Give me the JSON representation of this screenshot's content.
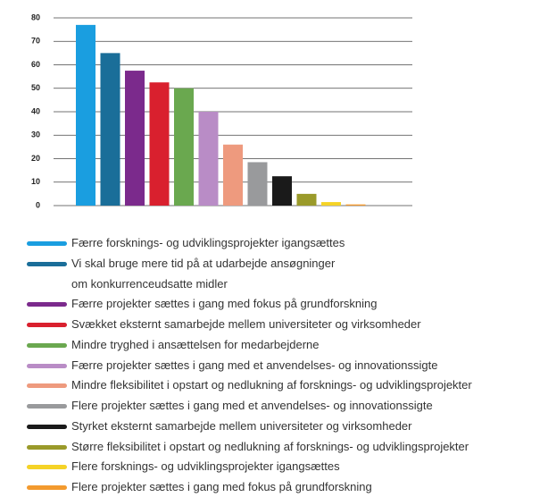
{
  "chart_data": {
    "type": "bar",
    "categories": [
      "Færre forsknings- og udviklingsprojekter igangsættes",
      "Vi skal bruge mere tid på at udarbejde ansøgninger\nom konkurrenceudsatte midler",
      "Færre projekter sættes i gang med fokus på grundforskning",
      "Svækket eksternt samarbejde mellem universiteter og virksomheder",
      "Mindre tryghed i ansættelsen for medarbejderne",
      "Færre projekter sættes i gang med et anvendelses- og innovationssigte",
      "Mindre fleksibilitet i opstart og nedlukning af forsknings- og udviklingsprojekter",
      "Flere projekter sættes i gang med et anvendelses- og innovationssigte",
      "Styrket eksternt samarbejde mellem universiteter og virksomheder",
      "Større fleksibilitet i opstart og nedlukning af forsknings- og udviklingsprojekter",
      "Flere forsknings- og udviklingsprojekter igangsættes",
      "Flere projekter sættes i gang med fokus på grundforskning"
    ],
    "values": [
      77,
      65,
      57.5,
      52.5,
      50,
      40,
      26,
      18.5,
      12.5,
      5,
      1.5,
      0.5
    ],
    "colors": [
      "#1a9ee0",
      "#1a6e99",
      "#7b2a8c",
      "#d9202e",
      "#6aa84f",
      "#b98cc6",
      "#ee9a7e",
      "#999a9c",
      "#1a1a1a",
      "#9a9a2a",
      "#f5d327",
      "#f39a2e"
    ],
    "ylim": [
      0,
      80
    ],
    "yticks": [
      0,
      10,
      20,
      30,
      40,
      50,
      60,
      70,
      80
    ],
    "grid": true
  }
}
